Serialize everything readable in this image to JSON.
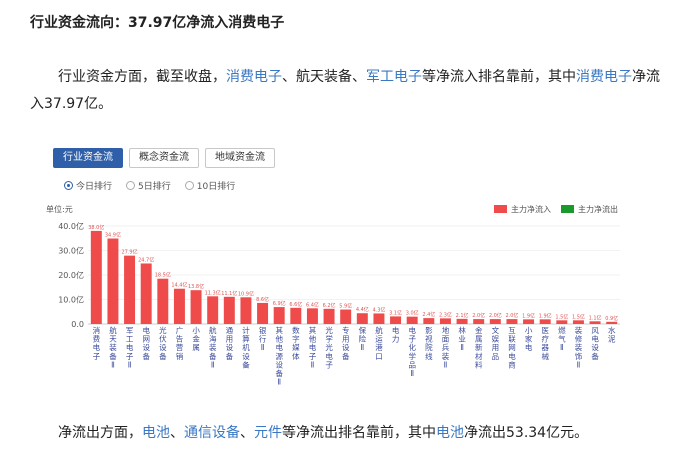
{
  "article": {
    "title": "行业资金流向：37.97亿净流入消费电子",
    "p1_a": "行业资金方面，截至收盘，",
    "p1_link1": "消费电子",
    "p1_b": "、航天装备、",
    "p1_link2": "军工电子",
    "p1_c": "等净流入排名靠前，其中",
    "p1_link3": "消费电子",
    "p1_d": "净流入37.97亿。",
    "p2_a": "净流出方面，",
    "p2_link1": "电池",
    "p2_b": "、",
    "p2_link2": "通信设备",
    "p2_c": "、",
    "p2_link3": "元件",
    "p2_d": "等净流出排名靠前，其中",
    "p2_link4": "电池",
    "p2_e": "净流出53.34亿元。"
  },
  "tabs": [
    "行业资金流",
    "概念资金流",
    "地域资金流"
  ],
  "radios": [
    "今日排行",
    "5日排行",
    "10日排行"
  ],
  "colors": {
    "inflow": "#ef4b4b",
    "outflow": "#1a9a2a",
    "accent": "#2f5fa8",
    "link": "#3a78c3"
  },
  "chart_data": {
    "type": "bar",
    "unit_label": "单位:元",
    "legend": [
      "主力净流入",
      "主力净流出"
    ],
    "legend_position": "top-right",
    "yticks": [
      "0.0",
      "10.0亿",
      "20.0亿",
      "30.0亿",
      "40.0亿"
    ],
    "ylim": [
      0,
      40
    ],
    "categories": [
      "消费电子",
      "航天装备Ⅱ",
      "军工电子Ⅱ",
      "电网设备",
      "光伏设备",
      "广告营销",
      "小金属",
      "航海装备Ⅱ",
      "通用设备",
      "计算机设备",
      "银行Ⅱ",
      "其他电源设备Ⅱ",
      "数字媒体",
      "其他电子Ⅱ",
      "光学光电子",
      "专用设备",
      "保险Ⅱ",
      "航运港口",
      "电力",
      "电子化学品Ⅱ",
      "影视院线",
      "地面兵装Ⅱ",
      "林业Ⅱ",
      "金属新材料",
      "文娱用品",
      "互联网电商",
      "小家电",
      "医疗器械",
      "燃气Ⅱ",
      "装修装饰Ⅱ",
      "风电设备",
      "水泥"
    ],
    "values": [
      38.0,
      34.9,
      27.9,
      24.7,
      18.5,
      14.4,
      13.8,
      11.3,
      11.1,
      10.9,
      8.6,
      6.9,
      6.6,
      6.4,
      6.2,
      5.9,
      4.4,
      4.3,
      3.1,
      3.0,
      2.4,
      2.3,
      2.1,
      2.0,
      2.0,
      2.0,
      1.9,
      1.9,
      1.5,
      1.5,
      1.1,
      0.9
    ],
    "value_labels": [
      "38.0亿",
      "34.9亿",
      "27.9亿",
      "24.7亿",
      "18.5亿",
      "14.4亿",
      "13.8亿",
      "11.3亿",
      "11.1亿",
      "10.9亿",
      "8.6亿",
      "6.9亿",
      "6.6亿",
      "6.4亿",
      "6.2亿",
      "5.9亿",
      "4.4亿",
      "4.3亿",
      "3.1亿",
      "3.0亿",
      "2.4亿",
      "2.3亿",
      "2.1亿",
      "2.0亿",
      "2.0亿",
      "2.0亿",
      "1.9亿",
      "1.9亿",
      "1.5亿",
      "1.5亿",
      "1.1亿",
      "0.9亿"
    ]
  }
}
